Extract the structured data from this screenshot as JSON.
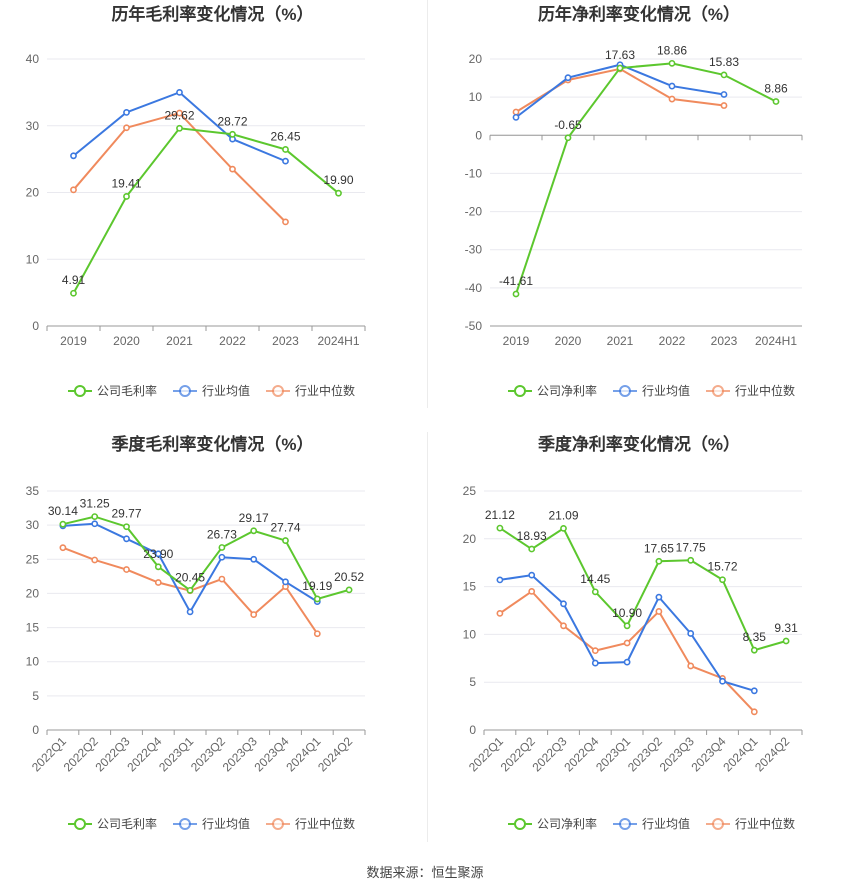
{
  "source_label": "数据来源：恒生聚源",
  "colors": {
    "company": "#5cc72e",
    "avg": "#3b78e0",
    "median": "#f08a5d"
  },
  "chart_data": [
    {
      "id": "annual-gross",
      "type": "line",
      "title": "历年毛利率变化情况（%）",
      "categories": [
        "2019",
        "2020",
        "2021",
        "2022",
        "2023",
        "2024H1"
      ],
      "ylim": [
        0,
        40
      ],
      "yticks": [
        0,
        10,
        20,
        30,
        40
      ],
      "legend_position": "bottom",
      "series": [
        {
          "key": "company",
          "name": "公司毛利率",
          "values": [
            4.91,
            19.41,
            29.62,
            28.72,
            26.45,
            19.9
          ],
          "labels": [
            "4.91",
            "19.41",
            "29.62",
            "28.72",
            "26.45",
            "19.90"
          ]
        },
        {
          "key": "avg",
          "name": "行业均值",
          "values": [
            25.5,
            32.0,
            35.0,
            28.0,
            24.7,
            null
          ]
        },
        {
          "key": "median",
          "name": "行业中位数",
          "values": [
            20.4,
            29.7,
            31.9,
            23.5,
            15.6,
            null
          ]
        }
      ]
    },
    {
      "id": "annual-net",
      "type": "line",
      "title": "历年净利率变化情况（%）",
      "categories": [
        "2019",
        "2020",
        "2021",
        "2022",
        "2023",
        "2024H1"
      ],
      "ylim": [
        -50,
        20
      ],
      "yticks": [
        -50,
        -40,
        -30,
        -20,
        -10,
        0,
        10,
        20
      ],
      "legend_position": "bottom",
      "series": [
        {
          "key": "company",
          "name": "公司净利率",
          "values": [
            -41.61,
            -0.65,
            17.63,
            18.86,
            15.83,
            8.86
          ],
          "labels": [
            "-41.61",
            "-0.65",
            "17.63",
            "18.86",
            "15.83",
            "8.86"
          ]
        },
        {
          "key": "avg",
          "name": "行业均值",
          "values": [
            4.7,
            15.1,
            18.5,
            12.9,
            10.7,
            null
          ]
        },
        {
          "key": "median",
          "name": "行业中位数",
          "values": [
            6.1,
            14.5,
            17.4,
            9.5,
            7.8,
            null
          ]
        }
      ]
    },
    {
      "id": "quarterly-gross",
      "type": "line",
      "title": "季度毛利率变化情况（%）",
      "categories": [
        "2022Q1",
        "2022Q2",
        "2022Q3",
        "2022Q4",
        "2023Q1",
        "2023Q2",
        "2023Q3",
        "2023Q4",
        "2024Q1",
        "2024Q2"
      ],
      "ylim": [
        0,
        35
      ],
      "yticks": [
        0,
        5,
        10,
        15,
        20,
        25,
        30,
        35
      ],
      "legend_position": "bottom",
      "series": [
        {
          "key": "company",
          "name": "公司毛利率",
          "values": [
            30.14,
            31.25,
            29.77,
            23.9,
            20.45,
            26.73,
            29.17,
            27.74,
            19.19,
            20.52
          ],
          "labels": [
            "30.14",
            "31.25",
            "29.77",
            "23.90",
            "20.45",
            "26.73",
            "29.17",
            "27.74",
            "19.19",
            "20.52"
          ]
        },
        {
          "key": "avg",
          "name": "行业均值",
          "values": [
            29.9,
            30.2,
            28.0,
            25.8,
            17.3,
            25.3,
            25.0,
            21.7,
            18.8,
            null
          ]
        },
        {
          "key": "median",
          "name": "行业中位数",
          "values": [
            26.7,
            24.9,
            23.5,
            21.6,
            20.4,
            22.1,
            16.9,
            21.0,
            14.1,
            null
          ]
        }
      ]
    },
    {
      "id": "quarterly-net",
      "type": "line",
      "title": "季度净利率变化情况（%）",
      "categories": [
        "2022Q1",
        "2022Q2",
        "2022Q3",
        "2022Q4",
        "2023Q1",
        "2023Q2",
        "2023Q3",
        "2023Q4",
        "2024Q1",
        "2024Q2"
      ],
      "ylim": [
        0,
        25
      ],
      "yticks": [
        0,
        5,
        10,
        15,
        20,
        25
      ],
      "legend_position": "bottom",
      "series": [
        {
          "key": "company",
          "name": "公司净利率",
          "values": [
            21.12,
            18.93,
            21.09,
            14.45,
            10.9,
            17.65,
            17.75,
            15.72,
            8.35,
            9.31
          ],
          "labels": [
            "21.12",
            "18.93",
            "21.09",
            "14.45",
            "10.90",
            "17.65",
            "17.75",
            "15.72",
            "8.35",
            "9.31"
          ]
        },
        {
          "key": "avg",
          "name": "行业均值",
          "values": [
            15.7,
            16.2,
            13.2,
            7.0,
            7.1,
            13.9,
            10.1,
            5.1,
            4.1,
            null
          ]
        },
        {
          "key": "median",
          "name": "行业中位数",
          "values": [
            12.2,
            14.5,
            10.9,
            8.3,
            9.1,
            12.4,
            6.7,
            5.4,
            1.9,
            null
          ]
        }
      ]
    }
  ]
}
